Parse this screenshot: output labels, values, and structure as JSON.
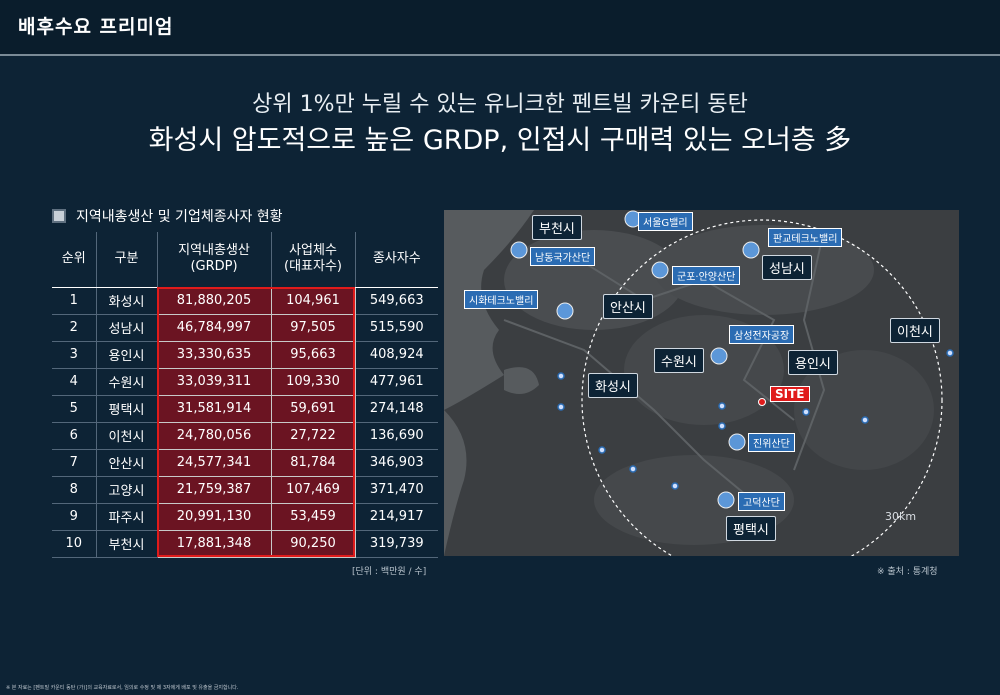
{
  "header": {
    "title": "배후수요 프리미엄"
  },
  "headline": {
    "line1": "상위 1%만 누릴 수 있는 유니크한 펜트빌 카운티 동탄",
    "line2": "화성시 압도적으로 높은 GRDP,  인접시 구매력 있는 오너층 多"
  },
  "section": {
    "title": "지역내총생산 및 기업체종사자 현황"
  },
  "table": {
    "headers": [
      "순위",
      "구분",
      "지역내총생산\n(GRDP)",
      "사업체수\n(대표자수)",
      "종사자수"
    ],
    "rows": [
      [
        "1",
        "화성시",
        "81,880,205",
        "104,961",
        "549,663"
      ],
      [
        "2",
        "성남시",
        "46,784,997",
        "97,505",
        "515,590"
      ],
      [
        "3",
        "용인시",
        "33,330,635",
        "95,663",
        "408,924"
      ],
      [
        "4",
        "수원시",
        "33,039,311",
        "109,330",
        "477,961"
      ],
      [
        "5",
        "평택시",
        "31,581,914",
        "59,691",
        "274,148"
      ],
      [
        "6",
        "이천시",
        "24,780,056",
        "27,722",
        "136,690"
      ],
      [
        "7",
        "안산시",
        "24,577,341",
        "81,784",
        "346,903"
      ],
      [
        "8",
        "고양시",
        "21,759,387",
        "107,469",
        "371,470"
      ],
      [
        "9",
        "파주시",
        "20,991,130",
        "53,459",
        "214,917"
      ],
      [
        "10",
        "부천시",
        "17,881,348",
        "90,250",
        "319,739"
      ]
    ]
  },
  "unit_note": "[단위 : 백만원 / 수]",
  "source_note": "※ 출처 : 통계청",
  "map": {
    "cities": [
      "부천시",
      "성남시",
      "안산시",
      "이천시",
      "수원시",
      "용인시",
      "화성시",
      "평택시"
    ],
    "complexes": [
      "서울G밸리",
      "판교테크노밸리",
      "남동국가산단",
      "군포·안양산단",
      "시화테크노밸리",
      "삼성전자공장",
      "진위산단",
      "고덕산단"
    ],
    "site_label": "SITE",
    "radius_label": "30km",
    "colors": {
      "site": "#e01b1b",
      "label_blue": "#2b6cb3",
      "city_box": "#0d2335"
    }
  },
  "footnote": "※ 본 자료는 [펜트빌 카운티 동탄 (가)]의 교육자료로서, 임의로 수정 및 제 3자에게 배포 및 유출을 금지합니다."
}
